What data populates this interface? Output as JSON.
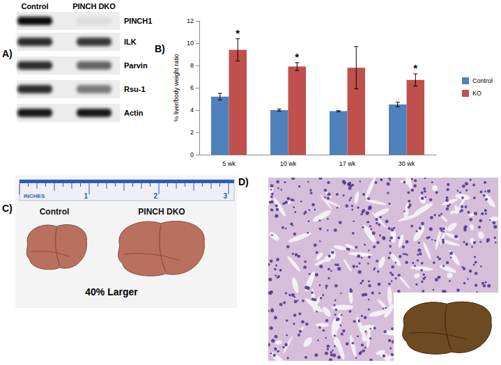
{
  "panels": {
    "A": {
      "panel_label": "A)",
      "lanes": [
        "Control",
        "PINCH DKO"
      ],
      "bands": [
        "PINCH1",
        "ILK",
        "Parvin",
        "Rsu-1",
        "Actin"
      ]
    },
    "C": {
      "panel_label": "C)",
      "ruler_unit": "INCHES",
      "ruler_ticks": [
        1,
        2,
        3
      ],
      "specimens": [
        "Control",
        "PINCH DKO"
      ],
      "caption": "40% Larger"
    },
    "D": {
      "panel_label": "D)"
    }
  },
  "chart_data": {
    "panel_label": "B)",
    "type": "bar",
    "y_label": "% liver/body weight ratio",
    "categories": [
      "5 wk",
      "10 wk",
      "17 wk",
      "30 wk"
    ],
    "series": [
      {
        "name": "Control",
        "color": "#4f81bd",
        "values": [
          5.2,
          4.0,
          3.9,
          4.5
        ],
        "errors": [
          0.3,
          0.1,
          0.05,
          0.2
        ]
      },
      {
        "name": "KO",
        "color": "#c0504d",
        "values": [
          9.4,
          7.9,
          7.8,
          6.7
        ],
        "errors": [
          1.0,
          0.35,
          1.9,
          0.55
        ]
      }
    ],
    "annotations": [
      "*",
      "*",
      null,
      "*"
    ],
    "ylim": [
      0,
      12
    ],
    "yticks": [
      0,
      2,
      4,
      6,
      8,
      10,
      12
    ],
    "grid": false,
    "legend": "right"
  }
}
